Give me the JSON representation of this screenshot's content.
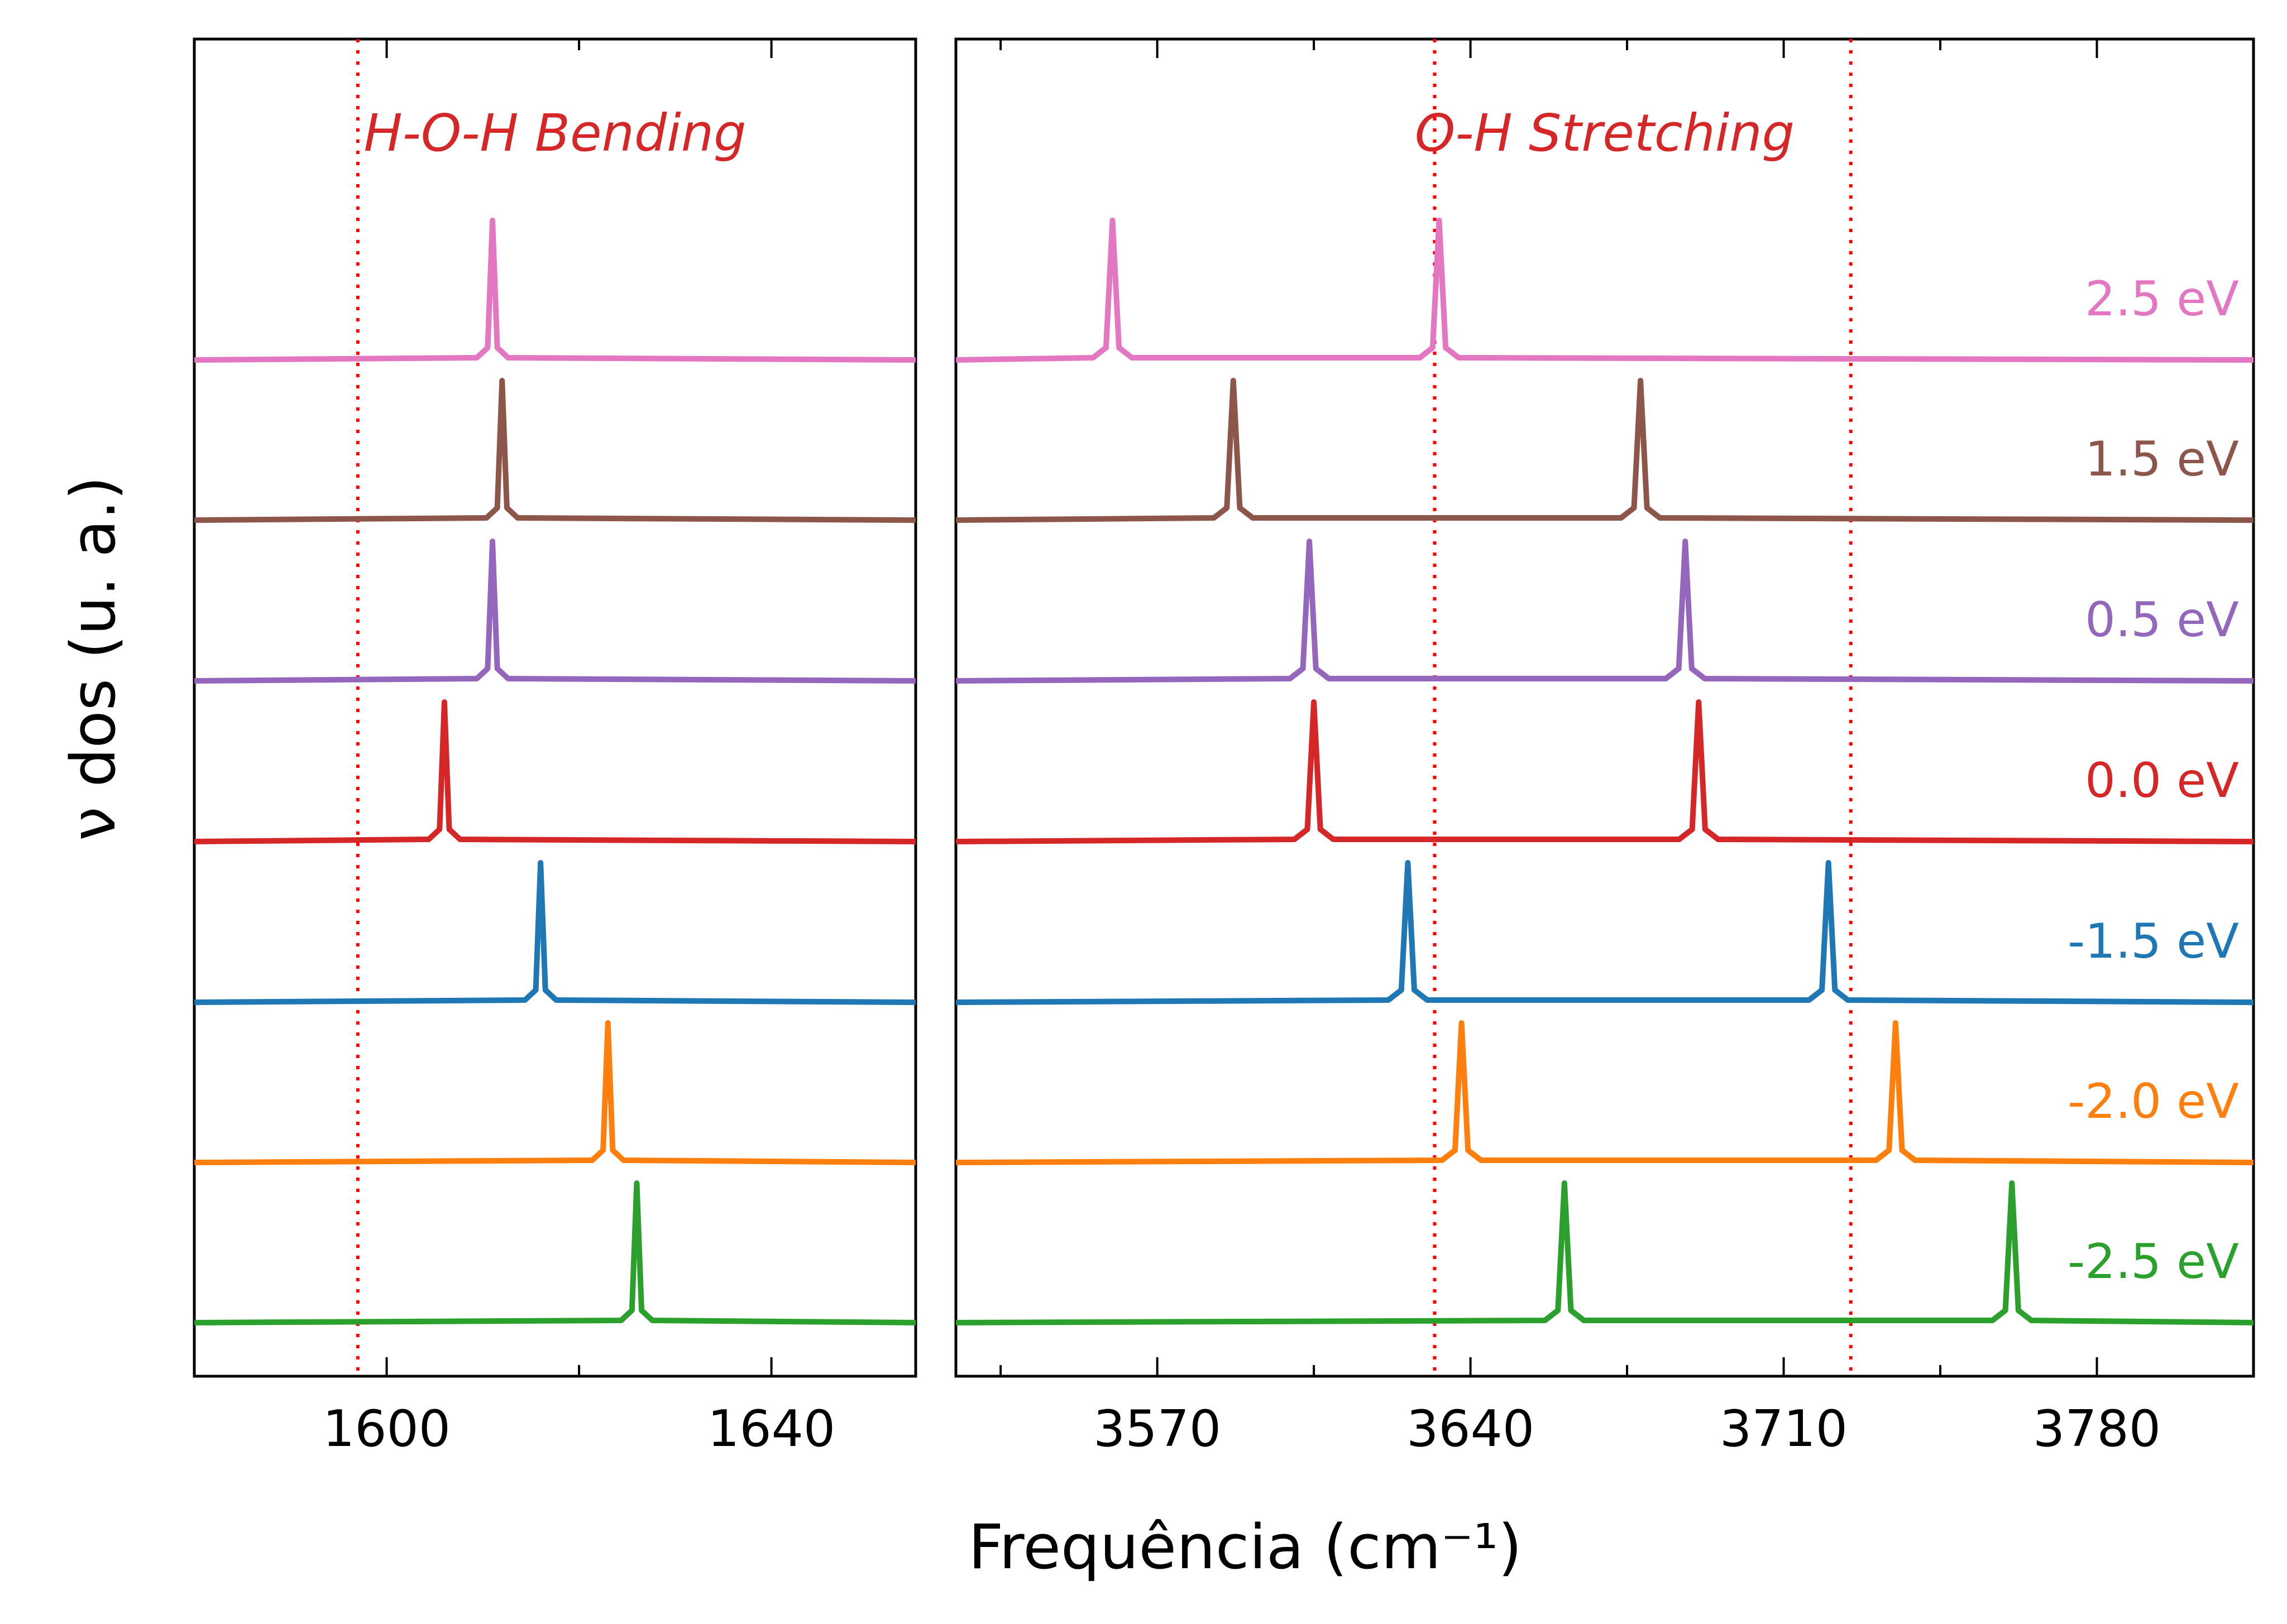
{
  "chart_data": {
    "type": "line",
    "xlabel": "Frequência (cm⁻¹)",
    "ylabel": "ν dos (u. a.)",
    "panels": [
      {
        "title": "H-O-H Bending",
        "xlim": [
          1580,
          1655
        ],
        "xticks": [
          1600,
          1640
        ],
        "reference_lines": [
          1597
        ],
        "peaks": [
          {
            "series": "2.5 eV",
            "x": [
              1611
            ]
          },
          {
            "series": "1.5 eV",
            "x": [
              1612
            ]
          },
          {
            "series": "0.5 eV",
            "x": [
              1611
            ]
          },
          {
            "series": "0.0 eV",
            "x": [
              1606
            ]
          },
          {
            "series": "-1.5 eV",
            "x": [
              1616
            ]
          },
          {
            "series": "-2.0 eV",
            "x": [
              1623
            ]
          },
          {
            "series": "-2.5 eV",
            "x": [
              1626
            ]
          }
        ]
      },
      {
        "title": "O-H Stretching",
        "xlim": [
          3525,
          3815
        ],
        "xticks": [
          3570,
          3640,
          3710,
          3780
        ],
        "reference_lines": [
          3632,
          3725
        ],
        "peaks": [
          {
            "series": "2.5 eV",
            "x": [
              3560,
              3633
            ]
          },
          {
            "series": "1.5 eV",
            "x": [
              3587,
              3678
            ]
          },
          {
            "series": "0.5 eV",
            "x": [
              3604,
              3688
            ]
          },
          {
            "series": "0.0 eV",
            "x": [
              3605,
              3691
            ]
          },
          {
            "series": "-1.5 eV",
            "x": [
              3626,
              3720
            ]
          },
          {
            "series": "-2.0 eV",
            "x": [
              3638,
              3735
            ]
          },
          {
            "series": "-2.5 eV",
            "x": [
              3661,
              3761
            ]
          }
        ]
      }
    ],
    "series": [
      {
        "name": "2.5 eV",
        "color": "#e377c2"
      },
      {
        "name": "1.5 eV",
        "color": "#8c564b"
      },
      {
        "name": "0.5 eV",
        "color": "#9467bd"
      },
      {
        "name": "0.0 eV",
        "color": "#d62728"
      },
      {
        "name": "-1.5 eV",
        "color": "#1f77b4"
      },
      {
        "name": "-2.0 eV",
        "color": "#ff7f0e"
      },
      {
        "name": "-2.5 eV",
        "color": "#2ca02c"
      }
    ],
    "reference_line_color": "#ff0000",
    "title_color": "#d62728",
    "grid": false,
    "legend": "right-side labels"
  }
}
